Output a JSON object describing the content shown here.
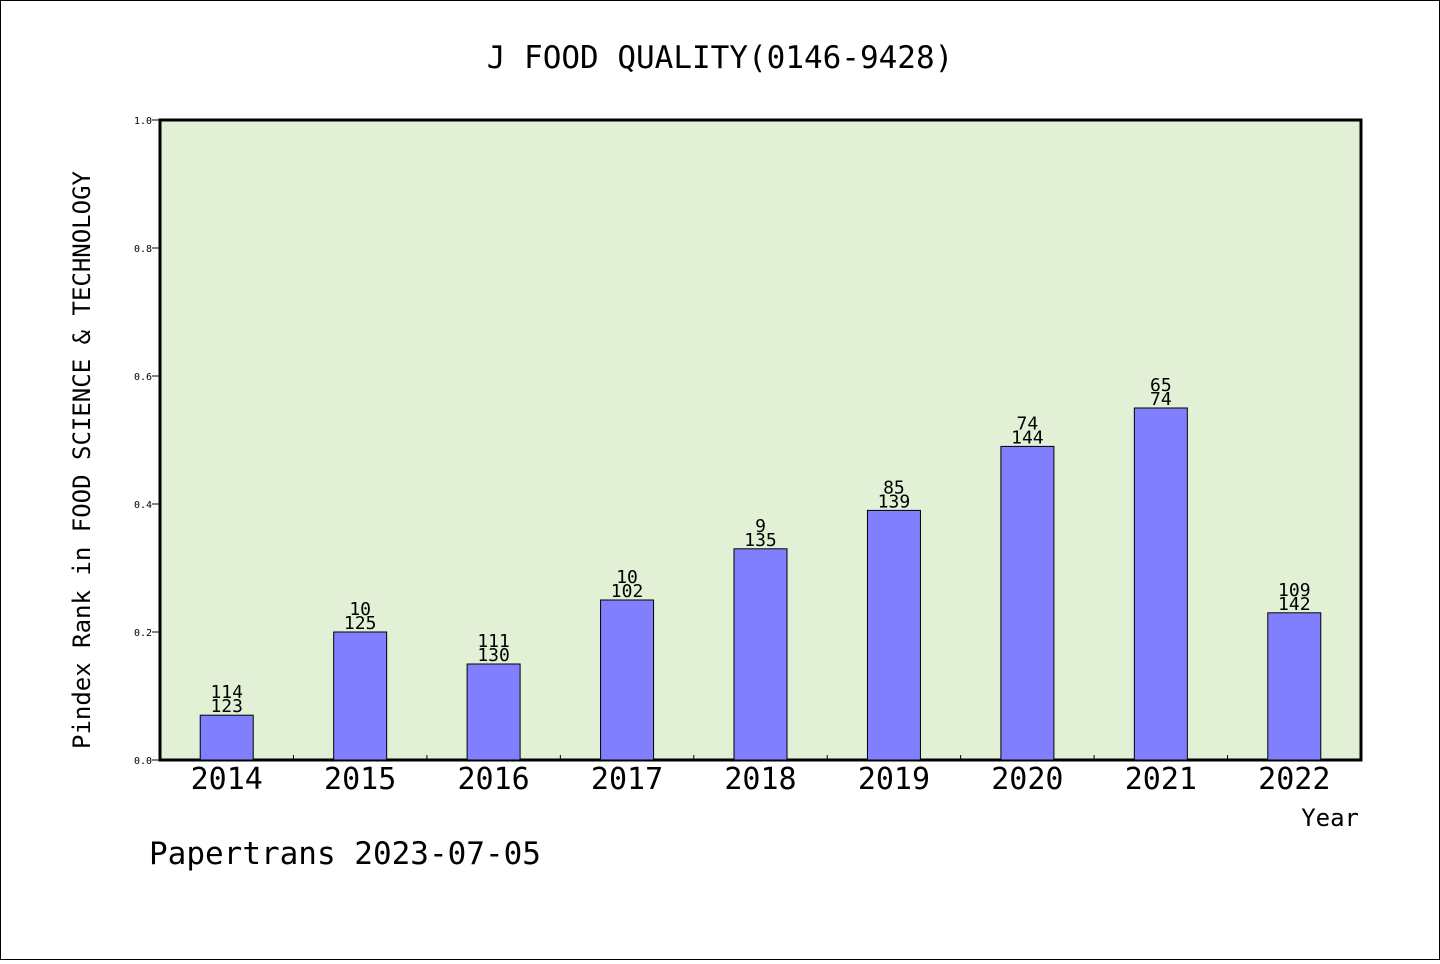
{
  "chart_data": {
    "type": "bar",
    "title": "J FOOD QUALITY(0146-9428)",
    "xlabel": "Year",
    "ylabel": "Pindex Rank in FOOD SCIENCE & TECHNOLOGY",
    "ylim": [
      0,
      1.0
    ],
    "yticks": [
      "0.0",
      "0.2",
      "0.4",
      "0.6",
      "0.8",
      "1.0"
    ],
    "categories": [
      "2014",
      "2015",
      "2016",
      "2017",
      "2018",
      "2019",
      "2020",
      "2021",
      "2022"
    ],
    "values": [
      0.07,
      0.2,
      0.15,
      0.25,
      0.33,
      0.39,
      0.49,
      0.55,
      0.23
    ],
    "label_top": [
      "114",
      "10",
      "111",
      "10",
      "9",
      "85",
      "74",
      "65",
      "109"
    ],
    "label_bottom": [
      "123",
      "125",
      "130",
      "102",
      "135",
      "139",
      "144",
      "74",
      "142"
    ],
    "grid": false,
    "colors": {
      "plot_background": "#e2f0d6",
      "bar_fill": "#8080ff",
      "bar_stroke": "#000000"
    }
  },
  "footer": "Papertrans 2023-07-05"
}
